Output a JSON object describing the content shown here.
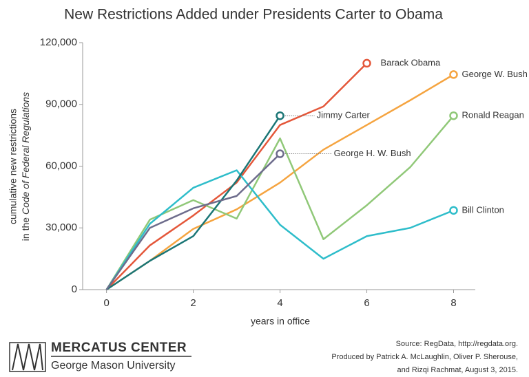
{
  "chart_data": {
    "type": "line",
    "title": "New Restrictions Added under Presidents Carter to Obama",
    "y_label": {
      "line1": "cumulative new restrictions",
      "line2_prefix": "in the",
      "line2_italic": "Code of Federal Regulations"
    },
    "x_label": "years in office",
    "x": [
      0,
      1,
      2,
      3,
      4,
      5,
      6,
      7,
      8
    ],
    "series": [
      {
        "name": "Barack Obama",
        "color": "#e4573a",
        "values": [
          0,
          21500,
          36000,
          52000,
          80000,
          89000,
          110000,
          null,
          null
        ]
      },
      {
        "name": "George W. Bush",
        "color": "#f5a440",
        "values": [
          0,
          14000,
          29500,
          39000,
          52000,
          68000,
          80000,
          92000,
          104500
        ]
      },
      {
        "name": "Ronald Reagan",
        "color": "#90c878",
        "values": [
          0,
          34000,
          43500,
          34500,
          73500,
          24500,
          41000,
          59500,
          84500
        ]
      },
      {
        "name": "Bill Clinton",
        "color": "#2ebdca",
        "values": [
          0,
          32000,
          49500,
          58000,
          31500,
          15000,
          26000,
          30000,
          38500
        ]
      },
      {
        "name": "Jimmy Carter",
        "color": "#1b7676",
        "values": [
          0,
          14000,
          26000,
          53000,
          84500,
          null,
          null,
          null,
          null
        ]
      },
      {
        "name": "George H. W. Bush",
        "color": "#6d6c8c",
        "values": [
          0,
          30000,
          39500,
          45500,
          66000,
          null,
          null,
          null,
          null
        ]
      }
    ],
    "xlim": [
      -0.55,
      8.5
    ],
    "ylim": [
      0,
      120000
    ],
    "xticks": [
      0,
      2,
      4,
      6,
      8
    ],
    "yticks": [
      0,
      {
        "value": 30000,
        "label": "30,000"
      },
      {
        "value": 60000,
        "label": "60,000"
      },
      {
        "value": 90000,
        "label": "90,000"
      },
      {
        "value": 120000,
        "label": "120,000"
      }
    ]
  },
  "footer": {
    "org": "MERCATUS CENTER",
    "university": "George Mason University",
    "source": [
      "Source: RegData, http://regdata.org.",
      "Produced by Patrick A. McLaughlin, Oliver P. Sherouse,",
      "and Rizqi Rachmat, August 3, 2015."
    ]
  }
}
